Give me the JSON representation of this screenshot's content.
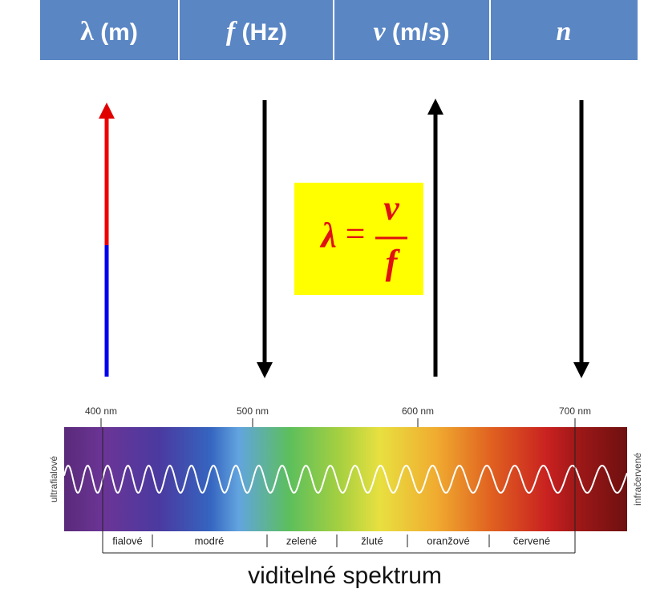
{
  "header": [
    {
      "symbol": "λ",
      "unit": "(m)"
    },
    {
      "symbol": "f",
      "unit": "(Hz)"
    },
    {
      "symbol": "v",
      "unit": "(m/s)"
    },
    {
      "symbol": "n"
    }
  ],
  "formula": {
    "lhs": "λ",
    "eq": "=",
    "numerator": "v",
    "denominator": "f"
  },
  "spectrum": {
    "ticks": [
      "400 nm",
      "500 nm",
      "600 nm",
      "700 nm"
    ],
    "left_label": "ultrafialové",
    "right_label": "infračervené",
    "colors": [
      "fialové",
      "modré",
      "zelené",
      "žluté",
      "oranžové",
      "červené"
    ],
    "title": "viditelné spektrum"
  }
}
